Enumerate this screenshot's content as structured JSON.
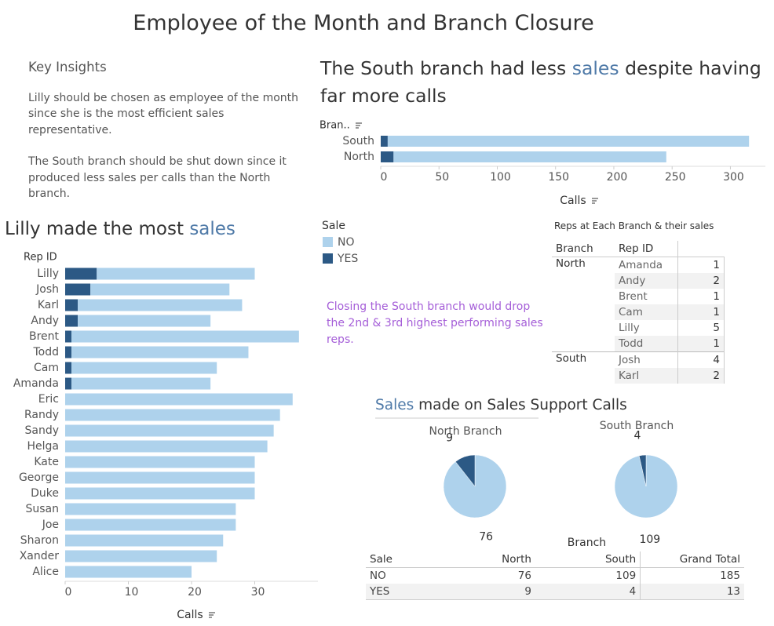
{
  "title": "Employee of the Month and Branch Closure",
  "insights": {
    "heading": "Key Insights",
    "paragraphs": [
      "Lilly should be chosen as employee of the month since she is the most efficient sales representative.",
      "The South branch should be shut down since it produced less sales per calls than the North branch."
    ]
  },
  "annotation": "Closing the South branch would drop the 2nd & 3rd highest performing sales reps.",
  "legend": {
    "title": "Sale"
  },
  "rep_table": {
    "title": "Reps at Each Branch & their sales",
    "headers": [
      "Branch",
      "Rep ID"
    ],
    "groups": [
      {
        "branch": "North",
        "rows": [
          [
            "Amanda",
            1
          ],
          [
            "Andy",
            2
          ],
          [
            "Brent",
            1
          ],
          [
            "Cam",
            1
          ],
          [
            "Lilly",
            5
          ],
          [
            "Todd",
            1
          ]
        ]
      },
      {
        "branch": "South",
        "rows": [
          [
            "Josh",
            4
          ],
          [
            "Karl",
            2
          ]
        ]
      }
    ]
  },
  "summary_table": {
    "column_group": "Branch",
    "headers": [
      "Sale",
      "North",
      "South",
      "Grand Total"
    ],
    "rows": [
      [
        "NO",
        76,
        109,
        185
      ],
      [
        "YES",
        9,
        4,
        13
      ]
    ]
  },
  "chart_data": [
    {
      "type": "bar",
      "title": [
        {
          "text": "The South branch had less ",
          "color": "#333333"
        },
        {
          "text": "sales",
          "color": "#4e79a7"
        },
        {
          "text": " despite having far more calls",
          "color": "#333333"
        }
      ],
      "y_label": "Bran..",
      "x_label": "Calls",
      "categories": [
        "South",
        "North"
      ],
      "series": [
        {
          "name": "NO",
          "color": "#aed2ec",
          "values": [
            310,
            234
          ]
        },
        {
          "name": "YES",
          "color": "#2c5985",
          "values": [
            6,
            11
          ]
        }
      ],
      "xlim": [
        0,
        330
      ],
      "xticks": [
        0,
        50,
        100,
        150,
        200,
        250,
        300
      ]
    },
    {
      "type": "bar",
      "title": [
        {
          "text": "Lilly made the most ",
          "color": "#333333"
        },
        {
          "text": "sales",
          "color": "#4e79a7"
        }
      ],
      "y_label": "Rep ID",
      "x_label": "Calls",
      "categories": [
        "Lilly",
        "Josh",
        "Karl",
        "Andy",
        "Brent",
        "Todd",
        "Cam",
        "Amanda",
        "Eric",
        "Randy",
        "Sandy",
        "Helga",
        "Kate",
        "George",
        "Duke",
        "Susan",
        "Joe",
        "Sharon",
        "Xander",
        "Alice"
      ],
      "series": [
        {
          "name": "NO",
          "color": "#aed2ec",
          "values": [
            25,
            22,
            26,
            21,
            36,
            28,
            23,
            22,
            36,
            34,
            33,
            32,
            30,
            30,
            30,
            27,
            27,
            25,
            24,
            20
          ]
        },
        {
          "name": "YES",
          "color": "#2c5985",
          "values": [
            5,
            4,
            2,
            2,
            1,
            1,
            1,
            1,
            0,
            0,
            0,
            0,
            0,
            0,
            0,
            0,
            0,
            0,
            0,
            0
          ]
        }
      ],
      "xlim": [
        0,
        40
      ],
      "xticks": [
        0,
        10,
        20,
        30
      ]
    },
    {
      "type": "pie",
      "title": [
        {
          "text": "Sales",
          "color": "#4e79a7"
        },
        {
          "text": " made on Sales Support Calls",
          "color": "#333333"
        }
      ],
      "categories": [
        "North Branch",
        "South Branch"
      ],
      "series": [
        {
          "name": "NO",
          "color": "#aed2ec",
          "values": [
            76,
            109
          ]
        },
        {
          "name": "YES",
          "color": "#2c5985",
          "values": [
            9,
            4
          ]
        }
      ]
    }
  ]
}
